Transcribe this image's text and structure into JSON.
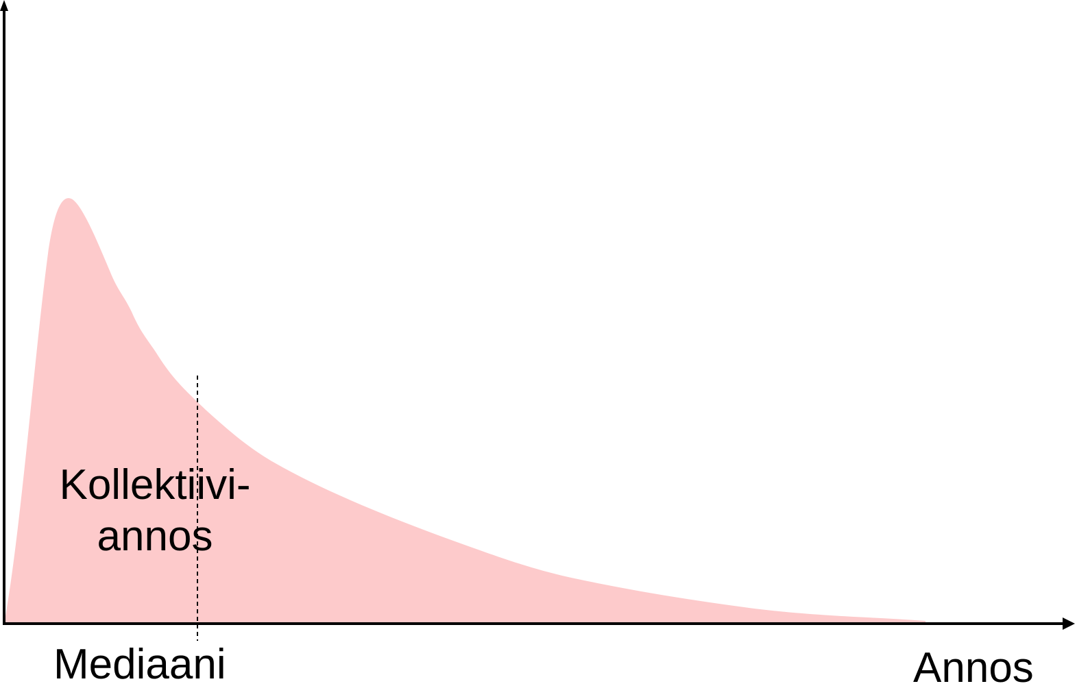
{
  "diagram": {
    "area_label_line1": "Kollektiivi-",
    "area_label_line2": "annos",
    "median_label": "Mediaani",
    "x_axis_label": "Annos"
  },
  "colors": {
    "area_fill": "#FDCACB",
    "axis": "#000000",
    "median_line": "#000000",
    "background": "#FFFFFF"
  }
}
